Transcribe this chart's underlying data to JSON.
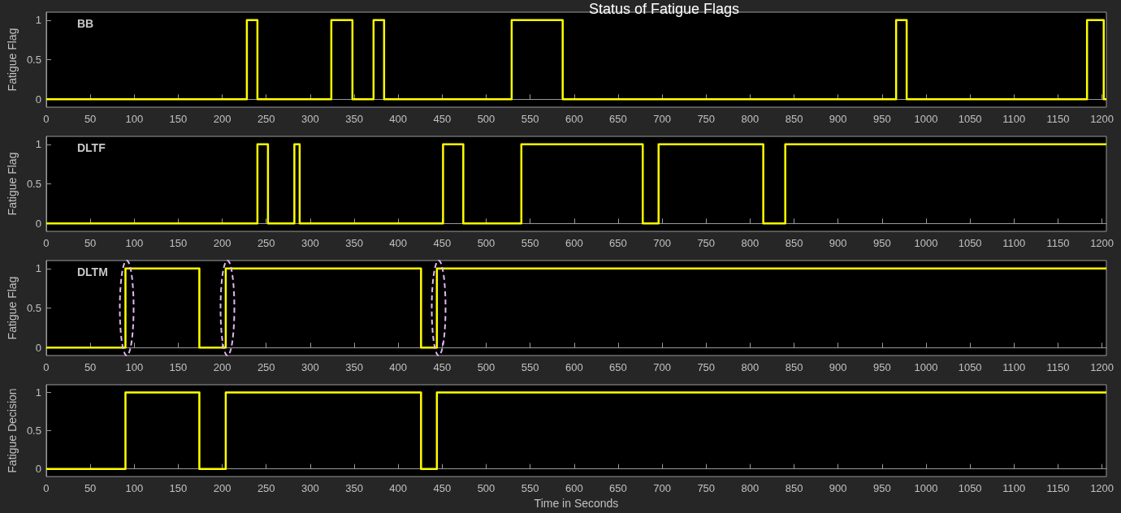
{
  "chart_data": [
    {
      "type": "step",
      "title": "Status of Fatigue Flags",
      "ylabel": "Fatigue Flag",
      "x": [
        0,
        228,
        240,
        324,
        348,
        372,
        384,
        529,
        587,
        966,
        978,
        1183,
        1202,
        1205
      ],
      "series": [
        {
          "name": "BB",
          "color": "#ffff00",
          "values": [
            0,
            1,
            0,
            1,
            0,
            1,
            0,
            1,
            0,
            1,
            0,
            1,
            0,
            0
          ]
        }
      ],
      "xlim": [
        0,
        1205
      ],
      "xticks": [
        0,
        50,
        100,
        150,
        200,
        250,
        300,
        350,
        400,
        450,
        500,
        550,
        600,
        650,
        700,
        750,
        800,
        850,
        900,
        950,
        1000,
        1050,
        1100,
        1150,
        1200
      ],
      "ylim": [
        -0.1,
        1.1
      ],
      "yticks": [
        0,
        0.5,
        1
      ],
      "marker": "none",
      "line_style": "solid"
    },
    {
      "type": "step",
      "ylabel": "Fatigue Flag",
      "x": [
        0,
        240,
        252,
        282,
        288,
        451,
        474,
        540,
        678,
        696,
        815,
        840,
        1205
      ],
      "series": [
        {
          "name": "DLTF",
          "color": "#ffff00",
          "values": [
            0,
            1,
            0,
            1,
            0,
            1,
            0,
            1,
            0,
            1,
            0,
            1,
            1
          ]
        }
      ],
      "xlim": [
        0,
        1205
      ],
      "xticks": [
        0,
        50,
        100,
        150,
        200,
        250,
        300,
        350,
        400,
        450,
        500,
        550,
        600,
        650,
        700,
        750,
        800,
        850,
        900,
        950,
        1000,
        1050,
        1100,
        1150,
        1200
      ],
      "ylim": [
        -0.1,
        1.1
      ],
      "yticks": [
        0,
        0.5,
        1
      ],
      "marker": "none",
      "line_style": "solid"
    },
    {
      "type": "step",
      "ylabel": "Fatigue Flag",
      "x": [
        0,
        90,
        174,
        204,
        426,
        444,
        1205
      ],
      "series": [
        {
          "name": "DLTM",
          "color": "#ffff00",
          "values": [
            0,
            1,
            0,
            1,
            0,
            1,
            1
          ]
        }
      ],
      "xlim": [
        0,
        1205
      ],
      "xticks": [
        0,
        50,
        100,
        150,
        200,
        250,
        300,
        350,
        400,
        450,
        500,
        550,
        600,
        650,
        700,
        750,
        800,
        850,
        900,
        950,
        1000,
        1050,
        1100,
        1150,
        1200
      ],
      "ylim": [
        -0.1,
        1.1
      ],
      "yticks": [
        0,
        0.5,
        1
      ],
      "marker": "none",
      "line_style": "solid"
    },
    {
      "type": "step",
      "ylabel": "Fatigue Decision",
      "xlabel": "Time in Seconds",
      "x": [
        0,
        90,
        174,
        204,
        426,
        444,
        1205
      ],
      "series": [
        {
          "color": "#ffff00",
          "values": [
            0,
            1,
            0,
            1,
            0,
            1,
            1
          ]
        }
      ],
      "xlim": [
        0,
        1205
      ],
      "xticks": [
        0,
        50,
        100,
        150,
        200,
        250,
        300,
        350,
        400,
        450,
        500,
        550,
        600,
        650,
        700,
        750,
        800,
        850,
        900,
        950,
        1000,
        1050,
        1100,
        1150,
        1200
      ],
      "ylim": [
        -0.1,
        1.1
      ],
      "yticks": [
        0,
        0.5,
        1
      ],
      "marker": "none",
      "line_style": "solid"
    }
  ]
}
